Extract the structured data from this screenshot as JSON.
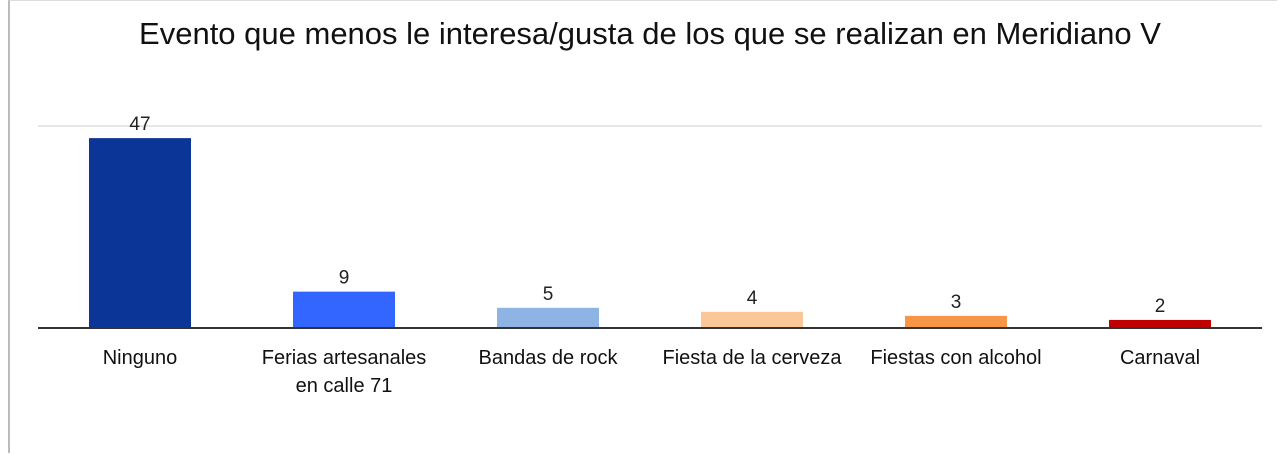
{
  "chart_data": {
    "type": "bar",
    "title": "Evento que menos le interesa/gusta de los que se realizan en Meridiano V",
    "categories": [
      "Ninguno",
      "Ferias artesanales en calle 71",
      "Bandas de rock",
      "Fiesta de la cerveza",
      "Fiestas con alcohol",
      "Carnaval"
    ],
    "values": [
      47,
      9,
      5,
      4,
      3,
      2
    ],
    "colors": [
      "#0b3596",
      "#3366ff",
      "#8eb4e3",
      "#fac898",
      "#f79646",
      "#c00000"
    ],
    "ylim": [
      0,
      50
    ]
  }
}
